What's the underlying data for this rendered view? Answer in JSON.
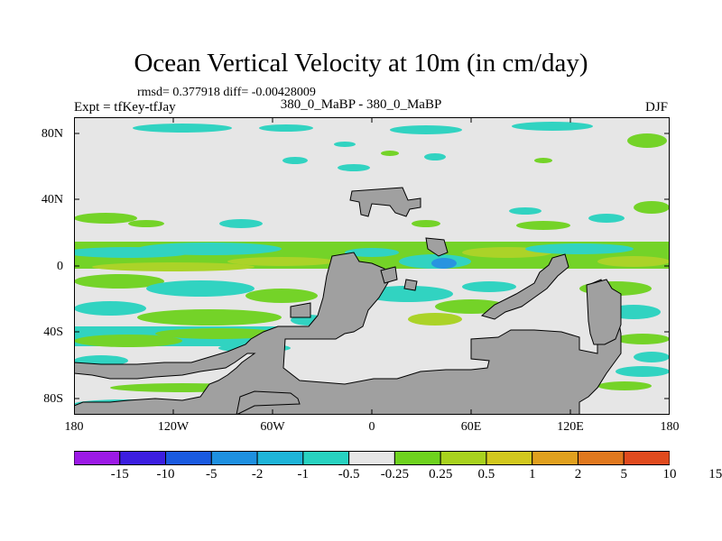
{
  "title": "Ocean Vertical Velocity at 10m (in cm/day)",
  "stats": "rmsd= 0.377918  diff= -0.00428009",
  "experiment": "Expt = tfKey-tfJay",
  "comparison": "380_0_MaBP - 380_0_MaBP",
  "season": "DJF",
  "lat_labels": [
    "80N",
    "40N",
    "0",
    "40S",
    "80S"
  ],
  "lon_labels": [
    "180",
    "120W",
    "60W",
    "0",
    "60E",
    "120E",
    "180"
  ],
  "colorbar": {
    "colors": [
      "#9c1ae6",
      "#3c1ee0",
      "#1a5ae0",
      "#1e90e0",
      "#1eb4d8",
      "#28d2c0",
      "#e6e6e6",
      "#6ed21e",
      "#a8d21e",
      "#d2c81e",
      "#e0a01e",
      "#e0781e",
      "#e04a1e"
    ],
    "labels": [
      "-15",
      "-10",
      "-5",
      "-2",
      "-1",
      "-0.5",
      "-0.25",
      "0.25",
      "0.5",
      "1",
      "2",
      "5",
      "10",
      "15"
    ]
  },
  "land_color": "#a0a0a0",
  "background_color": "#e6e6e6"
}
